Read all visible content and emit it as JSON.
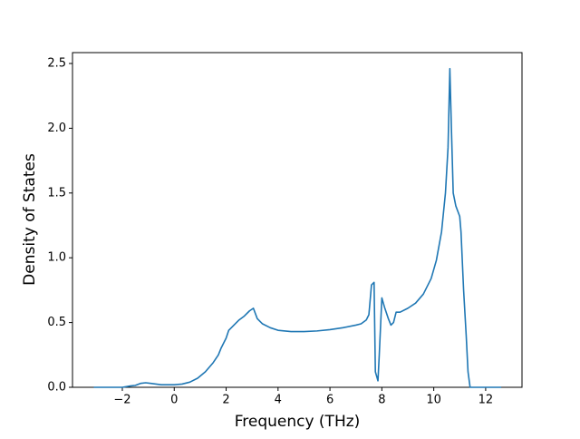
{
  "chart_data": {
    "type": "line",
    "xlabel": "Frequency (THz)",
    "ylabel": "Density of States",
    "xlim": [
      -3.92,
      13.4
    ],
    "ylim": [
      0,
      2.584
    ],
    "xticks": [
      {
        "value": -2,
        "label": "−2"
      },
      0,
      2,
      4,
      6,
      8,
      10,
      12
    ],
    "yticks": [
      {
        "value": 0,
        "label": "0.0"
      },
      0.5,
      {
        "value": 1,
        "label": "1.0"
      },
      1.5,
      {
        "value": 2,
        "label": "2.0"
      },
      2.5
    ],
    "grid": false,
    "series": [
      {
        "color": "#1f77b4",
        "x": [
          -3.1,
          -2.5,
          -2,
          -1.7,
          -1.5,
          -1.3,
          -1.1,
          -0.9,
          -0.7,
          -0.5,
          0,
          0.3,
          0.6,
          0.9,
          1.2,
          1.5,
          1.7,
          1.8,
          2.0,
          2.1,
          2.3,
          2.5,
          2.7,
          2.9,
          3.05,
          3.2,
          3.4,
          3.7,
          4.0,
          4.5,
          5.0,
          5.5,
          6.0,
          6.5,
          7.0,
          7.2,
          7.4,
          7.5,
          7.6,
          7.7,
          7.75,
          7.85,
          7.9,
          8.0,
          8.1,
          8.25,
          8.35,
          8.45,
          8.55,
          8.7,
          9.0,
          9.3,
          9.6,
          9.9,
          10.1,
          10.3,
          10.45,
          10.55,
          10.62,
          10.68,
          10.75,
          10.85,
          11.0,
          11.05,
          11.15,
          11.25,
          11.32,
          11.4,
          12,
          12.6
        ],
        "values": [
          0,
          0,
          0,
          0.01,
          0.015,
          0.03,
          0.035,
          0.03,
          0.025,
          0.02,
          0.02,
          0.025,
          0.04,
          0.07,
          0.12,
          0.19,
          0.25,
          0.3,
          0.38,
          0.44,
          0.48,
          0.52,
          0.55,
          0.59,
          0.61,
          0.53,
          0.49,
          0.46,
          0.44,
          0.43,
          0.43,
          0.435,
          0.445,
          0.46,
          0.48,
          0.49,
          0.52,
          0.56,
          0.79,
          0.81,
          0.12,
          0.05,
          0.25,
          0.69,
          0.62,
          0.53,
          0.48,
          0.5,
          0.58,
          0.58,
          0.61,
          0.65,
          0.72,
          0.84,
          0.98,
          1.2,
          1.5,
          1.85,
          2.46,
          2.0,
          1.5,
          1.4,
          1.32,
          1.2,
          0.75,
          0.4,
          0.12,
          0,
          0,
          0
        ]
      }
    ]
  }
}
